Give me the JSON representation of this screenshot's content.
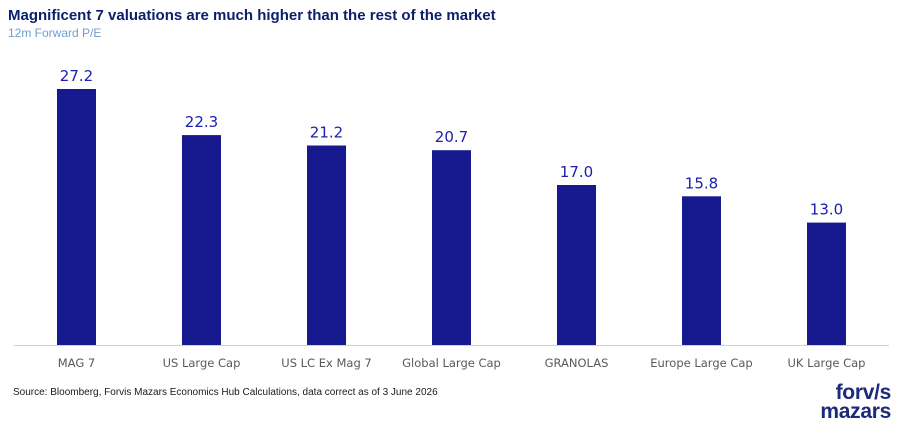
{
  "header": {
    "title": "Magnificent 7 valuations are much higher than the rest of the market",
    "subtitle": "12m Forward P/E"
  },
  "footer": {
    "source": "Source: Bloomberg, Forvis Mazars Economics Hub Calculations, data correct as of 3 June 2026"
  },
  "logo": {
    "line1": "forv/s",
    "line2": "mazars"
  },
  "colors": {
    "bar": "#171a8e",
    "data_label": "#1a20b0",
    "tick_label": "#595959",
    "axis": "#d0d0d0"
  },
  "chart_data": {
    "type": "bar",
    "title": "Magnificent 7 valuations are much higher than the rest of the market",
    "subtitle": "12m Forward P/E",
    "xlabel": "",
    "ylabel": "",
    "categories": [
      "MAG 7",
      "US Large Cap",
      "US LC Ex Mag 7",
      "Global Large Cap",
      "GRANOLAS",
      "Europe Large Cap",
      "UK Large Cap"
    ],
    "values": [
      27.2,
      22.3,
      21.2,
      20.7,
      17.0,
      15.8,
      13.0
    ],
    "data_labels": [
      "27.2",
      "22.3",
      "21.2",
      "20.7",
      "17.0",
      "15.8",
      "13.0"
    ],
    "ylim": [
      0,
      30
    ],
    "grid": false,
    "legend": "none"
  }
}
